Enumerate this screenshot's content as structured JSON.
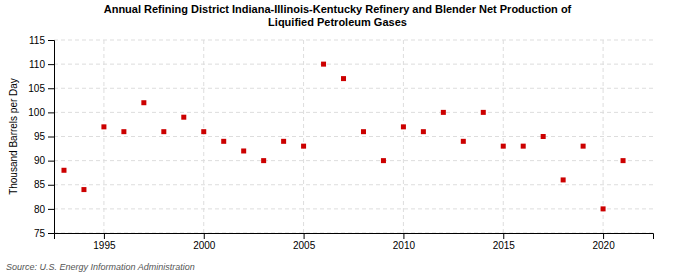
{
  "chart_data": {
    "type": "scatter",
    "title": "Annual Refining District Indiana-Illinois-Kentucky Refinery and Blender Net Production of\nLiquified Petroleum Gases",
    "ylabel": "Thousand Barrels per Day",
    "source": "Source: U.S. Energy Information Administration",
    "x": [
      1993,
      1994,
      1995,
      1996,
      1997,
      1998,
      1999,
      2000,
      2001,
      2002,
      2003,
      2004,
      2005,
      2006,
      2007,
      2008,
      2009,
      2010,
      2011,
      2012,
      2013,
      2014,
      2015,
      2016,
      2017,
      2018,
      2019,
      2020,
      2021
    ],
    "values": [
      88,
      84,
      97,
      96,
      102,
      96,
      99,
      96,
      94,
      92,
      90,
      94,
      93,
      110,
      107,
      96,
      90,
      97,
      96,
      100,
      94,
      100,
      93,
      93,
      95,
      86,
      93,
      80,
      90
    ],
    "color": "#cc0000",
    "marker": "square",
    "grid": true,
    "xlim": [
      1992.5,
      2022.5
    ],
    "xticks": [
      1995,
      2000,
      2005,
      2010,
      2015,
      2020
    ],
    "ylim": [
      75,
      115
    ],
    "yticks": [
      75,
      80,
      85,
      90,
      95,
      100,
      105,
      110,
      115
    ]
  }
}
